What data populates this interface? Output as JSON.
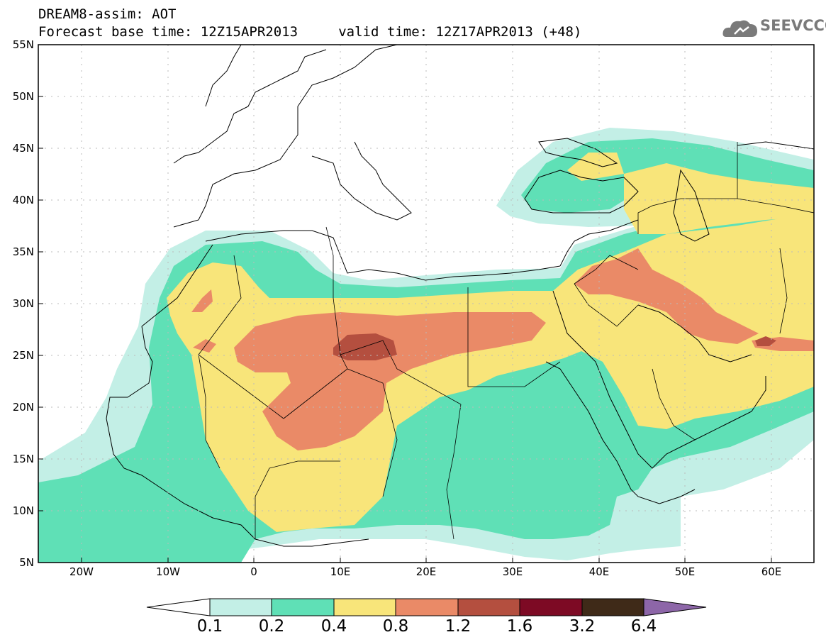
{
  "header": {
    "line1": "DREAM8-assim: AOT",
    "line2": "Forecast base time: 12Z15APR2013     valid time: 12Z17APR2013 (+48)"
  },
  "logo": {
    "text": "SEEVCCC"
  },
  "axes": {
    "lat_labels": [
      "55N",
      "50N",
      "45N",
      "40N",
      "35N",
      "30N",
      "25N",
      "20N",
      "15N",
      "10N",
      "5N"
    ],
    "lon_labels": [
      "20W",
      "10W",
      "0",
      "10E",
      "20E",
      "30E",
      "40E",
      "50E",
      "60E"
    ],
    "lon_range": [
      -25,
      65
    ],
    "lat_range": [
      5,
      55
    ]
  },
  "colorbar": {
    "labels": [
      "0.1",
      "0.2",
      "0.4",
      "0.8",
      "1.2",
      "1.6",
      "3.2",
      "6.4"
    ],
    "colors": [
      "#ffffff",
      "#c3efe6",
      "#5fe0b6",
      "#f8e57a",
      "#ea8a67",
      "#b44f3f",
      "#7d0a24",
      "#3f2a18",
      "#8d66a8"
    ]
  }
}
